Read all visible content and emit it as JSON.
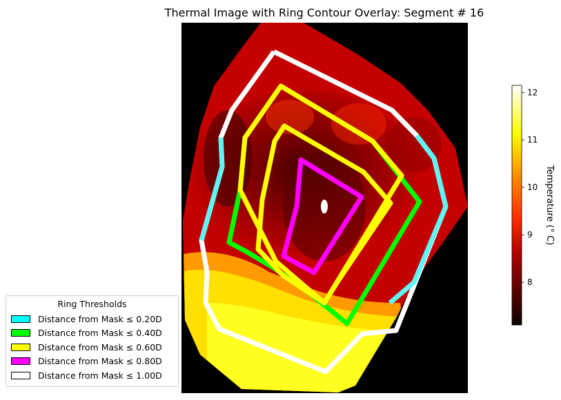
{
  "chart_data": {
    "type": "heatmap",
    "title": "Thermal Image with Ring Contour Overlay: Segment # 16",
    "colorbar": {
      "label": "Temperature (° C)",
      "range": [
        7.1,
        12.15
      ],
      "ticks": [
        8,
        9,
        10,
        11,
        12
      ],
      "colormap": "hot"
    },
    "legend": {
      "title": "Ring Thresholds",
      "placement": "lower-left",
      "entries": [
        {
          "label": "Distance from Mask ≤ 0.20D",
          "color": "#00ffff"
        },
        {
          "label": "Distance from Mask ≤ 0.40D",
          "color": "#00ff00"
        },
        {
          "label": "Distance from Mask ≤ 0.60D",
          "color": "#ffff00"
        },
        {
          "label": "Distance from Mask ≤ 0.80D",
          "color": "#ff00ff"
        },
        {
          "label": "Distance from Mask ≤ 1.00D",
          "color": "#ffffff"
        }
      ]
    }
  }
}
